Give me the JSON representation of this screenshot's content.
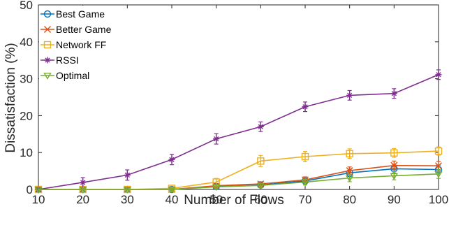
{
  "chart_data": {
    "type": "line",
    "xlabel": "Number of Flows",
    "ylabel": "Dissatisfaction (%)",
    "xlim": [
      10,
      100
    ],
    "ylim": [
      0,
      50
    ],
    "x": [
      10,
      20,
      30,
      40,
      50,
      60,
      70,
      80,
      90,
      100
    ],
    "x_ticks": [
      "10",
      "20",
      "30",
      "40",
      "50",
      "60",
      "70",
      "80",
      "90",
      "100"
    ],
    "y_ticks": [
      "0",
      "10",
      "20",
      "30",
      "40",
      "50"
    ],
    "grid": false,
    "legend_position": "top-left",
    "series": [
      {
        "name": "Best Game",
        "color": "#0072BD",
        "marker": "circle",
        "values": [
          0,
          0,
          0,
          0,
          0.8,
          1.2,
          2.3,
          4.5,
          5.6,
          5.4
        ],
        "errors": [
          0.2,
          0.2,
          0.2,
          0.3,
          0.5,
          0.6,
          0.8,
          1.0,
          1.2,
          1.2
        ]
      },
      {
        "name": "Better Game",
        "color": "#D95319",
        "marker": "x",
        "values": [
          0,
          0,
          0,
          0,
          1.0,
          1.5,
          2.6,
          5.1,
          6.5,
          6.4
        ],
        "errors": [
          0.2,
          0.2,
          0.2,
          0.3,
          0.5,
          0.6,
          0.8,
          1.0,
          1.2,
          1.2
        ]
      },
      {
        "name": "Network FF",
        "color": "#EDB120",
        "marker": "square",
        "values": [
          0,
          0,
          0,
          0.3,
          2.0,
          7.7,
          8.9,
          9.7,
          9.9,
          10.4
        ],
        "errors": [
          0.2,
          0.2,
          0.2,
          0.4,
          1.0,
          1.5,
          1.4,
          1.3,
          1.2,
          1.1
        ]
      },
      {
        "name": "RSSI",
        "color": "#7E2F8E",
        "marker": "asterisk",
        "values": [
          0,
          1.9,
          3.9,
          8.1,
          13.7,
          17.0,
          22.4,
          25.5,
          26.0,
          31.1
        ],
        "errors": [
          0.3,
          1.3,
          1.4,
          1.4,
          1.4,
          1.3,
          1.3,
          1.3,
          1.3,
          1.3
        ]
      },
      {
        "name": "Optimal",
        "color": "#77AC30",
        "marker": "triangle-down",
        "values": [
          0,
          0,
          0,
          0,
          0.7,
          1.1,
          2.0,
          3.1,
          3.7,
          4.2
        ],
        "errors": [
          0.2,
          0.2,
          0.2,
          0.3,
          0.5,
          0.6,
          0.8,
          1.0,
          1.1,
          1.2
        ]
      }
    ]
  }
}
